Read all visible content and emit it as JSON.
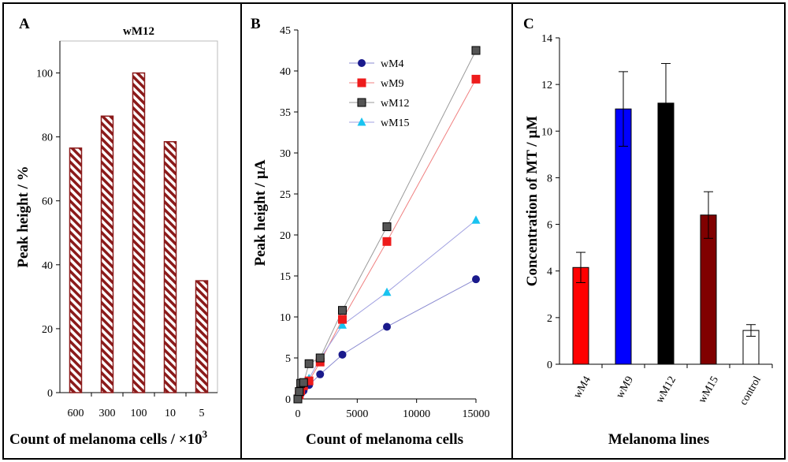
{
  "chart_data": [
    {
      "panel": "A",
      "type": "bar",
      "title": "wM12",
      "xlabel": "Count of melanoma cells / ×10",
      "xlabel_sup": "3",
      "ylabel": "Peak height / %",
      "categories": [
        "600",
        "300",
        "100",
        "10",
        "5"
      ],
      "values": [
        76.5,
        86.5,
        100,
        78.5,
        35
      ],
      "ylim": [
        0,
        110
      ],
      "yticks": [
        "0",
        "20",
        "40",
        "60",
        "80",
        "100"
      ],
      "fill_pattern": "diagonal-stripes",
      "color": "#8b1a1a"
    },
    {
      "panel": "B",
      "type": "scatter",
      "xlabel": "Count of melanoma cells",
      "ylabel": "Peak height / µA",
      "xlim": [
        0,
        15000
      ],
      "ylim": [
        0,
        45
      ],
      "xticks": [
        "0",
        "5000",
        "10000",
        "15000"
      ],
      "yticks": [
        "0",
        "5",
        "10",
        "15",
        "20",
        "25",
        "30",
        "35",
        "40",
        "45"
      ],
      "legend_position": "top-left",
      "series": [
        {
          "name": "wM4",
          "marker": "circle",
          "color": "#1a1a8c",
          "line_color": "#8a8ad0",
          "x": [
            0,
            120,
            240,
            480,
            940,
            1875,
            3750,
            7500,
            15000
          ],
          "y": [
            0,
            0.3,
            0.6,
            1.0,
            1.7,
            3.0,
            5.4,
            8.8,
            14.6
          ]
        },
        {
          "name": "wM9",
          "marker": "square",
          "color": "#ee1c1c",
          "line_color": "#f08080",
          "x": [
            0,
            120,
            240,
            480,
            940,
            1875,
            3750,
            7500,
            15000
          ],
          "y": [
            0,
            0.5,
            1.0,
            1.6,
            2.2,
            4.5,
            9.7,
            19.2,
            39.0
          ]
        },
        {
          "name": "wM12",
          "marker": "square",
          "color": "#555555",
          "line_color": "#9a9a9a",
          "x": [
            0,
            120,
            240,
            480,
            940,
            1875,
            3750,
            7500,
            15000
          ],
          "y": [
            0,
            0.9,
            1.9,
            2.0,
            4.3,
            5.0,
            10.8,
            21.0,
            42.5
          ]
        },
        {
          "name": "wM15",
          "marker": "triangle",
          "color": "#19c3f0",
          "line_color": "#a0a0e0",
          "x": [
            0,
            120,
            240,
            480,
            940,
            1875,
            3750,
            7500,
            15000
          ],
          "y": [
            0,
            0.5,
            1.0,
            2.0,
            2.5,
            4.9,
            9.0,
            13.0,
            21.8
          ]
        }
      ]
    },
    {
      "panel": "C",
      "type": "bar",
      "xlabel": "Melanoma lines",
      "ylabel": "Concentration of MT / µM",
      "categories": [
        "wM4",
        "wM9",
        "wM12",
        "wM15",
        "control"
      ],
      "values": [
        4.15,
        10.95,
        11.2,
        6.4,
        1.45
      ],
      "errors": [
        0.65,
        1.6,
        1.7,
        1.0,
        0.25
      ],
      "colors": [
        "#ff0000",
        "#0000ff",
        "#000000",
        "#800000",
        "#ffffff"
      ],
      "ylim": [
        0,
        14
      ],
      "yticks": [
        "0",
        "2",
        "4",
        "6",
        "8",
        "10",
        "12",
        "14"
      ]
    }
  ]
}
